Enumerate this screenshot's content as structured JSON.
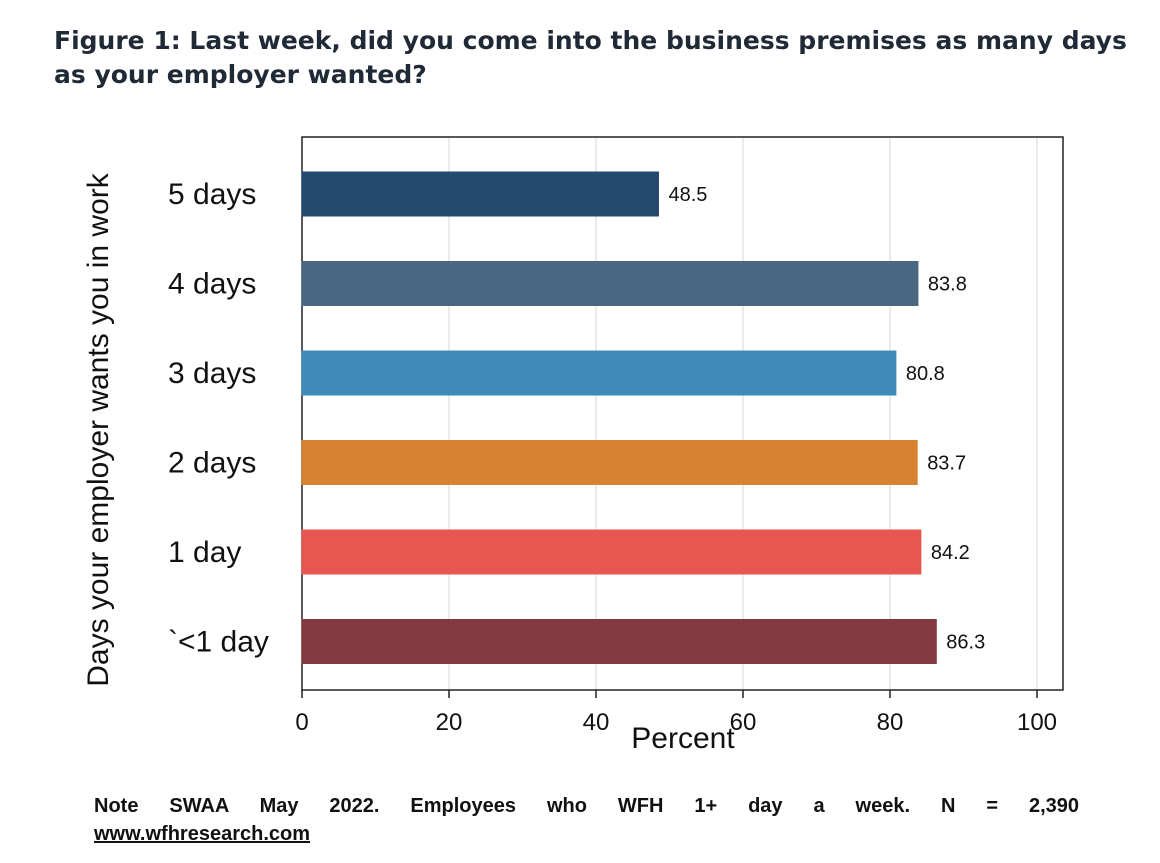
{
  "figure": {
    "title": "Figure 1: Last week, did you come into the business premises as many days as your employer wanted?"
  },
  "chart_data": {
    "type": "bar",
    "orientation": "horizontal",
    "categories": [
      "5 days",
      "4 days",
      "3 days",
      "2 days",
      "1 day",
      "`<1 day"
    ],
    "values": [
      48.5,
      83.8,
      80.8,
      83.7,
      84.2,
      86.3
    ],
    "value_labels": [
      "48.5",
      "83.8",
      "80.8",
      "83.7",
      "84.2",
      "86.3"
    ],
    "colors": [
      "#24496e",
      "#4a6681",
      "#3d8bb6",
      "#d68230",
      "#e8574f",
      "#823a3e"
    ],
    "xlabel": "Percent",
    "ylabel": "Days your employer wants you in work",
    "xlim": [
      0,
      100
    ],
    "xticks": [
      0,
      20,
      40,
      60,
      80,
      100
    ],
    "grid": true,
    "legend": "none"
  },
  "footer": {
    "note": "Note SWAA May 2022. Employees who WFH 1+ day a week. N = 2,390",
    "website": "www.wfhresearch.com"
  }
}
